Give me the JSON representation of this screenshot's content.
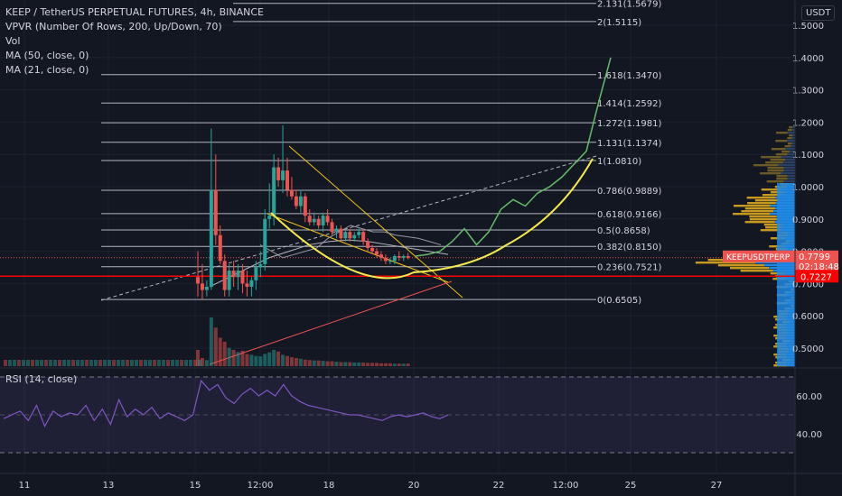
{
  "header": {
    "symbol_line": "KEEP / TetherUS PERPETUAL FUTURES, 4h, BINANCE",
    "indicators": [
      "VPVR (Number Of Rows, 200, Up/Down, 70)",
      "Vol",
      "MA (50, close, 0)",
      "MA (21, close, 0)"
    ],
    "rsi_label": "RSI (14, close)",
    "currency_badge": "USDT"
  },
  "colors": {
    "background": "#131722",
    "up": "#26a69a",
    "down": "#ef5350",
    "fib": "#b2b5be",
    "cup": "#f5e94d",
    "projection": "#66bb6a",
    "price_line": "#ff0000",
    "rsi": "#7e57c2"
  },
  "chart_data": {
    "type": "candlestick",
    "price_axis": {
      "range": [
        0.46,
        1.57
      ],
      "ticks": [
        "0.5000",
        "0.6000",
        "0.7000",
        "0.8000",
        "0.9000",
        "1.0000",
        "1.1000",
        "1.2000",
        "1.3000",
        "1.4000",
        "1.5000"
      ]
    },
    "time_axis": {
      "ticks": [
        "11",
        "13",
        "15",
        "12:00",
        "18",
        "20",
        "22",
        "12:00",
        "25",
        "27"
      ]
    },
    "fib_levels": [
      {
        "label": "0(0.6505)",
        "value": 0.6505
      },
      {
        "label": "0.236(0.7521)",
        "value": 0.7521
      },
      {
        "label": "0.382(0.8150)",
        "value": 0.815
      },
      {
        "label": "0.5(0.8658)",
        "value": 0.8658
      },
      {
        "label": "0.618(0.9166)",
        "value": 0.9166
      },
      {
        "label": "0.786(0.9889)",
        "value": 0.9889
      },
      {
        "label": "1(1.0810)",
        "value": 1.081
      },
      {
        "label": "1.131(1.1374)",
        "value": 1.1374
      },
      {
        "label": "1.272(1.1981)",
        "value": 1.1981
      },
      {
        "label": "1.414(1.2592)",
        "value": 1.2592
      },
      {
        "label": "1.618(1.3470)",
        "value": 1.347
      },
      {
        "label": "2(1.5115)",
        "value": 1.5115
      },
      {
        "label": "2.131(1.5679)",
        "value": 1.5679
      }
    ],
    "current_price": {
      "label": "KEEPUSDTPERP",
      "value": "0.7799",
      "countdown": "02:18:48"
    },
    "horizontal_line": {
      "value": 0.7227,
      "label": "0.7227"
    },
    "candles_ohlc": [
      [
        0.72,
        0.8,
        0.66,
        0.7
      ],
      [
        0.7,
        0.76,
        0.65,
        0.68
      ],
      [
        0.68,
        0.71,
        0.66,
        0.69
      ],
      [
        0.69,
        1.18,
        0.68,
        0.99
      ],
      [
        0.99,
        1.1,
        0.82,
        0.85
      ],
      [
        0.85,
        0.88,
        0.76,
        0.77
      ],
      [
        0.77,
        0.79,
        0.66,
        0.68
      ],
      [
        0.68,
        0.76,
        0.66,
        0.74
      ],
      [
        0.74,
        0.77,
        0.69,
        0.72
      ],
      [
        0.72,
        0.76,
        0.68,
        0.74
      ],
      [
        0.74,
        0.76,
        0.67,
        0.7
      ],
      [
        0.7,
        0.74,
        0.66,
        0.69
      ],
      [
        0.69,
        0.72,
        0.66,
        0.71
      ],
      [
        0.71,
        0.77,
        0.68,
        0.75
      ],
      [
        0.75,
        0.8,
        0.72,
        0.76
      ],
      [
        0.76,
        0.93,
        0.74,
        0.9
      ],
      [
        0.9,
        1.01,
        0.87,
        0.91
      ],
      [
        0.91,
        1.1,
        0.88,
        1.06
      ],
      [
        1.06,
        1.09,
        1.0,
        1.02
      ],
      [
        1.02,
        1.19,
        0.98,
        1.05
      ],
      [
        1.05,
        1.09,
        0.97,
        0.99
      ],
      [
        0.99,
        1.03,
        0.96,
        0.97
      ],
      [
        0.97,
        0.99,
        0.93,
        0.94
      ],
      [
        0.94,
        0.99,
        0.92,
        0.97
      ],
      [
        0.97,
        0.98,
        0.89,
        0.91
      ],
      [
        0.91,
        0.93,
        0.88,
        0.89
      ],
      [
        0.89,
        0.92,
        0.88,
        0.9
      ],
      [
        0.9,
        0.91,
        0.87,
        0.88
      ],
      [
        0.88,
        0.92,
        0.86,
        0.91
      ],
      [
        0.91,
        0.93,
        0.88,
        0.89
      ],
      [
        0.89,
        0.9,
        0.85,
        0.86
      ],
      [
        0.86,
        0.88,
        0.84,
        0.87
      ],
      [
        0.87,
        0.88,
        0.83,
        0.84
      ],
      [
        0.84,
        0.87,
        0.83,
        0.86
      ],
      [
        0.86,
        0.87,
        0.83,
        0.84
      ],
      [
        0.84,
        0.86,
        0.83,
        0.85
      ],
      [
        0.85,
        0.87,
        0.84,
        0.86
      ],
      [
        0.86,
        0.87,
        0.82,
        0.83
      ],
      [
        0.83,
        0.84,
        0.8,
        0.81
      ],
      [
        0.81,
        0.82,
        0.79,
        0.8
      ],
      [
        0.8,
        0.81,
        0.78,
        0.79
      ],
      [
        0.79,
        0.8,
        0.77,
        0.78
      ],
      [
        0.78,
        0.79,
        0.76,
        0.77
      ],
      [
        0.77,
        0.78,
        0.76,
        0.77
      ],
      [
        0.77,
        0.79,
        0.76,
        0.785
      ],
      [
        0.785,
        0.8,
        0.77,
        0.78
      ],
      [
        0.78,
        0.79,
        0.77,
        0.785
      ],
      [
        0.785,
        0.795,
        0.775,
        0.78
      ]
    ],
    "ma21": [
      0.82,
      0.8,
      0.78,
      0.79,
      0.8,
      0.81,
      0.84,
      0.86,
      0.88,
      0.87,
      0.86,
      0.86,
      0.85,
      0.845,
      0.84,
      0.83,
      0.82
    ],
    "ma50": [
      0.69,
      0.72,
      0.75,
      0.78,
      0.8,
      0.82,
      0.83,
      0.835,
      0.83,
      0.82,
      0.81,
      0.8,
      0.79
    ],
    "projection_path": [
      0.785,
      0.79,
      0.8,
      0.83,
      0.87,
      0.82,
      0.86,
      0.93,
      0.96,
      0.94,
      0.98,
      1.0,
      1.03,
      1.07,
      1.11,
      1.26,
      1.4
    ],
    "volume": [
      40,
      20,
      15,
      120,
      95,
      70,
      60,
      45,
      40,
      35,
      38,
      30,
      28,
      25,
      24,
      30,
      34,
      40,
      36,
      28,
      25,
      22,
      20,
      18,
      16,
      15,
      14,
      14,
      13,
      12,
      12,
      11,
      10,
      10,
      10,
      9,
      9,
      9,
      8,
      8,
      8,
      7,
      7,
      7,
      6,
      6,
      6,
      6
    ],
    "volume_up": [
      false,
      false,
      true,
      true,
      false,
      false,
      false,
      true,
      false,
      true,
      false,
      false,
      true,
      true,
      true,
      true,
      true,
      true,
      false,
      true,
      false,
      false,
      false,
      true,
      false,
      false,
      true,
      false,
      true,
      false,
      false,
      true,
      false,
      true,
      false,
      true,
      true,
      false,
      false,
      false,
      false,
      false,
      false,
      false,
      true,
      false,
      true,
      false
    ],
    "rsi": {
      "label": "RSI (14, close)",
      "ticks": [
        "60.00",
        "40.00"
      ],
      "values": [
        48,
        50,
        52,
        47,
        55,
        44,
        52,
        49,
        51,
        50,
        55,
        47,
        53,
        45,
        58,
        49,
        53,
        50,
        54,
        48,
        51,
        49,
        47,
        50,
        68,
        63,
        66,
        59,
        56,
        61,
        64,
        60,
        63,
        60,
        66,
        60,
        57,
        55,
        54,
        53,
        52,
        51,
        50,
        50,
        49,
        48,
        47,
        49,
        50,
        49,
        50,
        51,
        49,
        48,
        50
      ]
    },
    "vpvr_profile": "volume-by-price histogram on right edge"
  }
}
